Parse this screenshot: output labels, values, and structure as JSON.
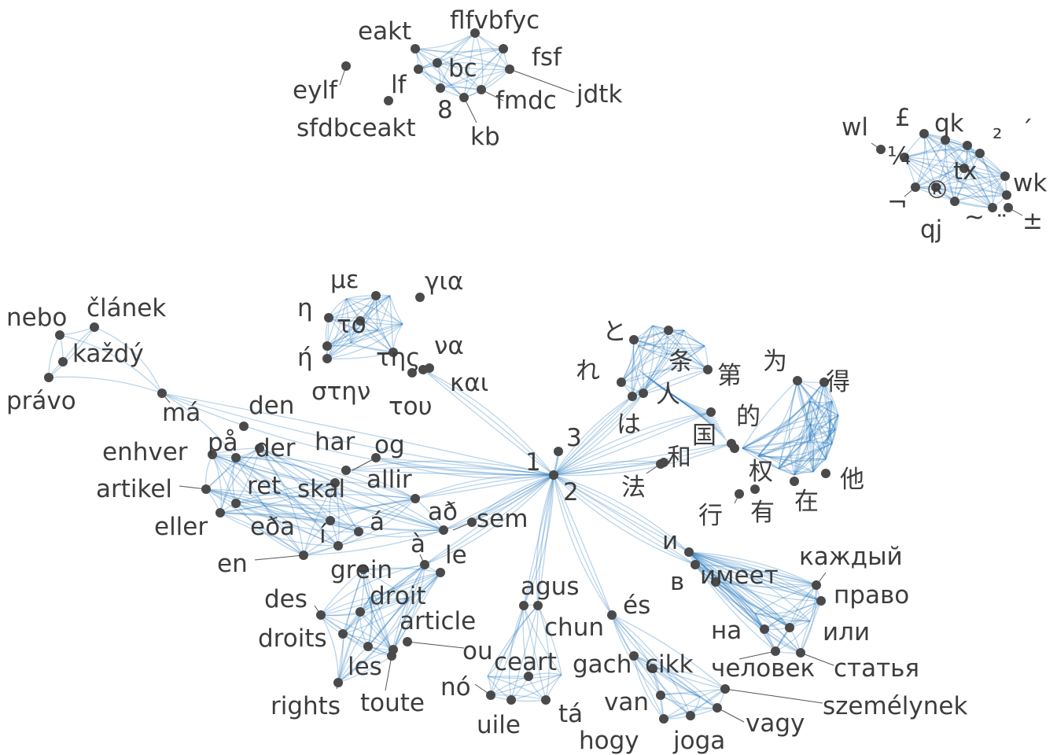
{
  "colors": {
    "edge": "#2f7bbf",
    "node": "#4a4a4a",
    "label": "#3d3d3d",
    "background": "#ffffff"
  },
  "clusters": [
    {
      "id": "latin-misc",
      "words": [
        "eakt",
        "flfvbfyc",
        "fsf",
        "bc",
        "lf",
        "eylf",
        "jdtk",
        "fmdc",
        "8",
        "sfdbceakt",
        "kb"
      ]
    },
    {
      "id": "symbols",
      "words": [
        "wl",
        "£",
        "qk",
        "₂",
        "ˊ",
        "¼",
        "tx",
        "wk",
        "®",
        "¬",
        "qj",
        "~",
        "¨",
        "±"
      ]
    },
    {
      "id": "czech",
      "words": [
        "nebo",
        "článek",
        "každý",
        "právo",
        "má"
      ]
    },
    {
      "id": "greek",
      "words": [
        "με",
        "για",
        "η",
        "το",
        "ή",
        "της",
        "να",
        "και",
        "στην",
        "του"
      ]
    },
    {
      "id": "hub",
      "words": [
        "1",
        "2",
        "3"
      ]
    },
    {
      "id": "japanese-chinese",
      "words": [
        "と",
        "条",
        "れ",
        "第",
        "人",
        "为",
        "得",
        "は",
        "的",
        "国",
        "和",
        "法",
        "权",
        "他",
        "行",
        "有",
        "在"
      ]
    },
    {
      "id": "nordic",
      "words": [
        "den",
        "enhver",
        "på",
        "der",
        "har",
        "og",
        "artikel",
        "ret",
        "skal",
        "allir",
        "eller",
        "eða",
        "á",
        "að",
        "í",
        "en"
      ]
    },
    {
      "id": "french",
      "words": [
        "sem",
        "à",
        "le",
        "grein",
        "des",
        "droit",
        "article",
        "droits",
        "ou",
        "les",
        "rights",
        "toute"
      ]
    },
    {
      "id": "irish",
      "words": [
        "agus",
        "chun",
        "ceart",
        "nó",
        "uile",
        "tá"
      ]
    },
    {
      "id": "hungarian",
      "words": [
        "és",
        "gach",
        "cikk",
        "van",
        "hogy",
        "joga",
        "vagy",
        "személynek"
      ]
    },
    {
      "id": "russian",
      "words": [
        "и",
        "в",
        "имеет",
        "каждый",
        "право",
        "на",
        "или",
        "человек",
        "статья"
      ]
    }
  ]
}
